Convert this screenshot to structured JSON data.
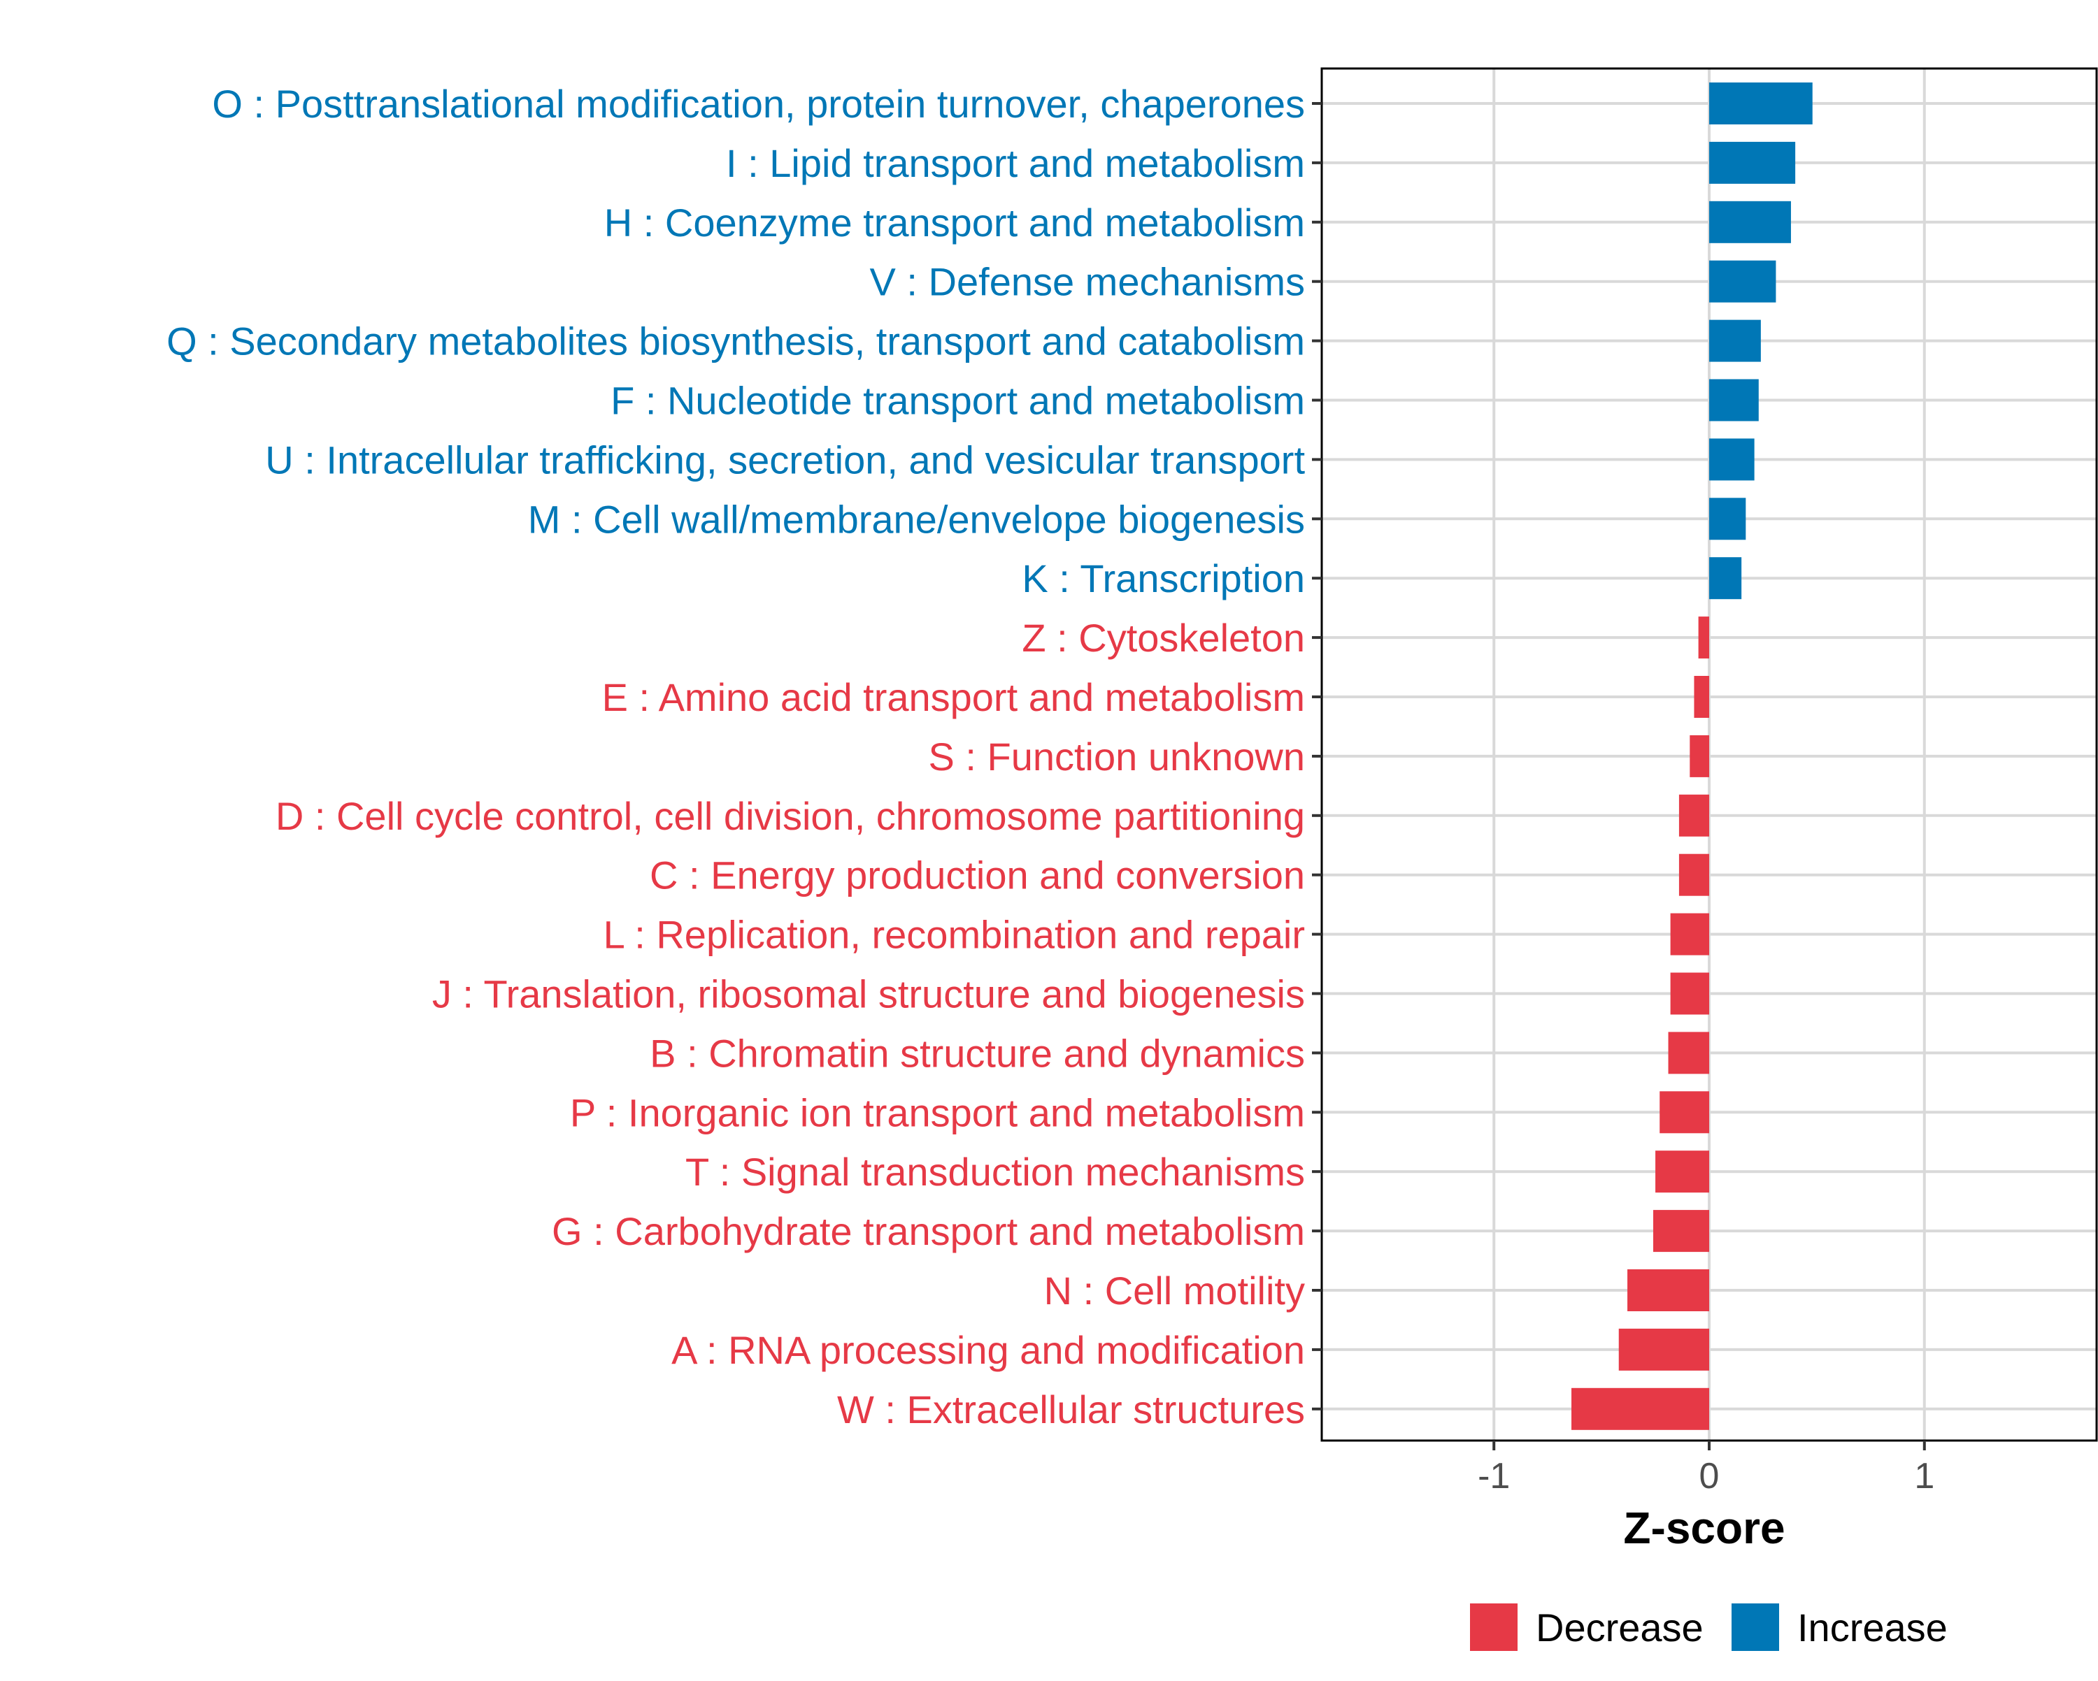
{
  "chart_data": {
    "type": "bar",
    "orientation": "horizontal",
    "xlabel": "Z-score",
    "ylabel": "",
    "xlim": [
      -1.8,
      1.8
    ],
    "xticks": [
      -1,
      0,
      1
    ],
    "xtick_labels": [
      "-1",
      "0",
      "1"
    ],
    "grid": true,
    "legend_position": "bottom",
    "colors": {
      "Decrease": "#e63946",
      "Increase": "#0077b6"
    },
    "legend": [
      {
        "label": "Decrease",
        "color": "#e63946"
      },
      {
        "label": "Increase",
        "color": "#0077b6"
      }
    ],
    "categories": [
      "O : Posttranslational modification, protein turnover, chaperones",
      "I : Lipid transport and metabolism",
      "H : Coenzyme transport and metabolism",
      "V : Defense mechanisms",
      "Q : Secondary metabolites biosynthesis, transport and catabolism",
      "F : Nucleotide transport and metabolism",
      "U : Intracellular trafficking, secretion, and vesicular transport",
      "M : Cell wall/membrane/envelope biogenesis",
      "K : Transcription",
      "Z : Cytoskeleton",
      "E : Amino acid transport and metabolism",
      "S : Function unknown",
      "D : Cell cycle control, cell division, chromosome partitioning",
      "C : Energy production and conversion",
      "L : Replication, recombination and repair",
      "J : Translation, ribosomal structure and biogenesis",
      "B : Chromatin structure and dynamics",
      "P : Inorganic ion transport and metabolism",
      "T : Signal transduction mechanisms",
      "G : Carbohydrate transport and metabolism",
      "N : Cell motility",
      "A : RNA processing and modification",
      "W : Extracellular structures"
    ],
    "values": [
      0.48,
      0.4,
      0.38,
      0.31,
      0.24,
      0.23,
      0.21,
      0.17,
      0.15,
      -0.05,
      -0.07,
      -0.09,
      -0.14,
      -0.14,
      -0.18,
      -0.18,
      -0.19,
      -0.23,
      -0.25,
      -0.26,
      -0.38,
      -0.42,
      -0.64
    ],
    "groups": [
      "Increase",
      "Increase",
      "Increase",
      "Increase",
      "Increase",
      "Increase",
      "Increase",
      "Increase",
      "Increase",
      "Decrease",
      "Decrease",
      "Decrease",
      "Decrease",
      "Decrease",
      "Decrease",
      "Decrease",
      "Decrease",
      "Decrease",
      "Decrease",
      "Decrease",
      "Decrease",
      "Decrease",
      "Decrease"
    ]
  }
}
